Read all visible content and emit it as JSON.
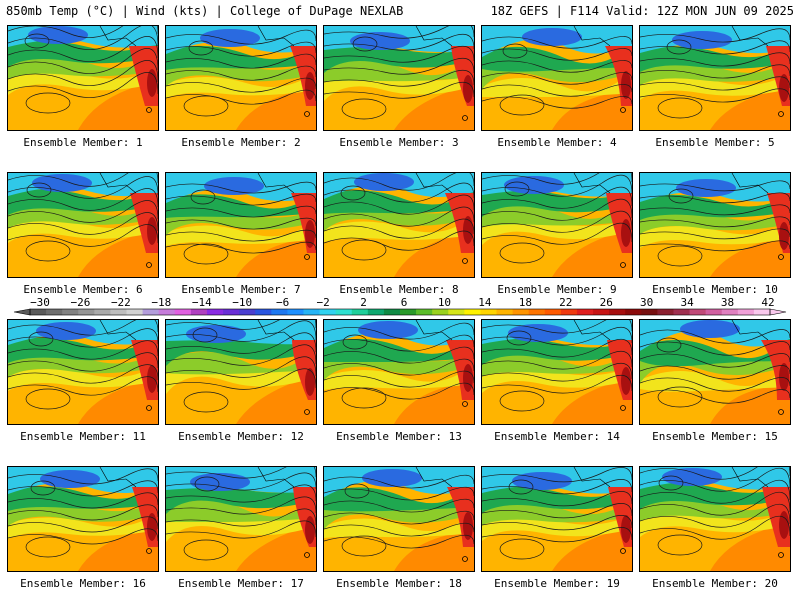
{
  "header": {
    "left_title": "850mb Temp (°C) | Wind (kts) | College of DuPage NEXLAB",
    "right_title": "18Z GEFS | F114 Valid: 12Z MON JUN 09 2025"
  },
  "members": [
    "Ensemble Member: 1",
    "Ensemble Member: 2",
    "Ensemble Member: 3",
    "Ensemble Member: 4",
    "Ensemble Member: 5",
    "Ensemble Member: 6",
    "Ensemble Member: 7",
    "Ensemble Member: 8",
    "Ensemble Member: 9",
    "Ensemble Member: 10",
    "Ensemble Member: 11",
    "Ensemble Member: 12",
    "Ensemble Member: 13",
    "Ensemble Member: 14",
    "Ensemble Member: 15",
    "Ensemble Member: 16",
    "Ensemble Member: 17",
    "Ensemble Member: 18",
    "Ensemble Member: 19",
    "Ensemble Member: 20"
  ],
  "colorbar": {
    "tick_labels": [
      "-30",
      "-26",
      "-22",
      "-18",
      "-14",
      "-10",
      "-6",
      "-2",
      "2",
      "6",
      "10",
      "14",
      "18",
      "22",
      "26",
      "30",
      "34",
      "38",
      "42"
    ],
    "colors": [
      "#5a5a5a",
      "#6e6e6e",
      "#828282",
      "#969696",
      "#aaaaaa",
      "#bebebe",
      "#d2d2d2",
      "#b39ddb",
      "#c77ddb",
      "#e060e0",
      "#b040c0",
      "#8a2be2",
      "#6a2fd6",
      "#4b3fd0",
      "#2a55e0",
      "#1e78f0",
      "#1e90ff",
      "#27b4f5",
      "#33d3f0",
      "#2fe0d0",
      "#1fcf9a",
      "#0fa870",
      "#108a45",
      "#2a9a2a",
      "#5bbd2a",
      "#9ad21e",
      "#d6e61a",
      "#fff200",
      "#ffd400",
      "#ffb400",
      "#ff9400",
      "#ff7400",
      "#ff5a00",
      "#f03a10",
      "#e01e1e",
      "#c81414",
      "#a80f0f",
      "#8c0a0a",
      "#781010",
      "#8c2030",
      "#a03050",
      "#c04a78",
      "#d060a0",
      "#e080c0",
      "#f0a0d8",
      "#f8c8ec"
    ]
  },
  "map_colors": {
    "cold": "#2a6ae0",
    "cool": "#30c8e8",
    "mild": "#1fa850",
    "warm_green": "#8ccc2a",
    "yellow": "#f2e41c",
    "orange": "#ffb400",
    "dark_orange": "#ff8a00",
    "hot": "#e8301e",
    "very_hot": "#a81010"
  }
}
